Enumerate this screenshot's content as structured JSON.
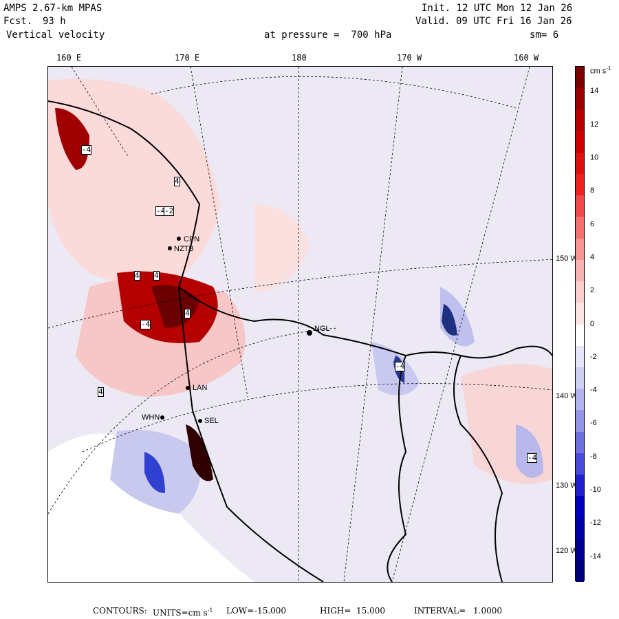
{
  "header": {
    "model": "AMPS 2.67-km MPAS",
    "forecast_label": "Fcst.",
    "forecast_hours": "93 h",
    "field": "Vertical velocity",
    "init": "Init. 12 UTC Mon 12 Jan 26",
    "valid": "Valid. 09 UTC Fri 16 Jan 26",
    "pressure": "at pressure =  700 hPa",
    "smoothing": "sm= 6"
  },
  "longitude_labels": [
    "160 E",
    "170 E",
    "180",
    "170 W",
    "160 W"
  ],
  "latitude_labels": [
    "150 W",
    "140 W",
    "130 W",
    "120 W"
  ],
  "stations": [
    "CPN",
    "NZTB",
    "NGL",
    "LAN",
    "WHN",
    "SEL"
  ],
  "contour_box_labels": [
    "-4",
    "4",
    "-4",
    "-2",
    "4",
    "4",
    "-4",
    "4",
    "4",
    "-4",
    "-4"
  ],
  "colorbar": {
    "units_label": "cm s",
    "units_exp": "-1",
    "tick_labels": [
      "14",
      "12",
      "10",
      "8",
      "6",
      "4",
      "2",
      "0",
      "-2",
      "-4",
      "-6",
      "-8",
      "-10",
      "-12",
      "-14"
    ],
    "colors": [
      "#7a0000",
      "#9c0000",
      "#b80000",
      "#cf0000",
      "#e01010",
      "#f02020",
      "#f24a4a",
      "#f57070",
      "#f79494",
      "#f8b3b3",
      "#facfcf",
      "#fde4e4",
      "#ffffff",
      "#e6e6f8",
      "#cfcff3",
      "#b3b3ee",
      "#9494e8",
      "#7070e0",
      "#4a4ad8",
      "#2020d0",
      "#0000c0",
      "#0000a8",
      "#000090",
      "#00007a"
    ]
  },
  "footer": {
    "contours_label": "CONTOURS:",
    "units_label": "UNITS=cm s",
    "units_exp": "-1",
    "low_label": "LOW=",
    "low_value": "-15.000",
    "high_label": "HIGH=",
    "high_value": "15.000",
    "interval_label": "INTERVAL=",
    "interval_value": "1.0000"
  }
}
